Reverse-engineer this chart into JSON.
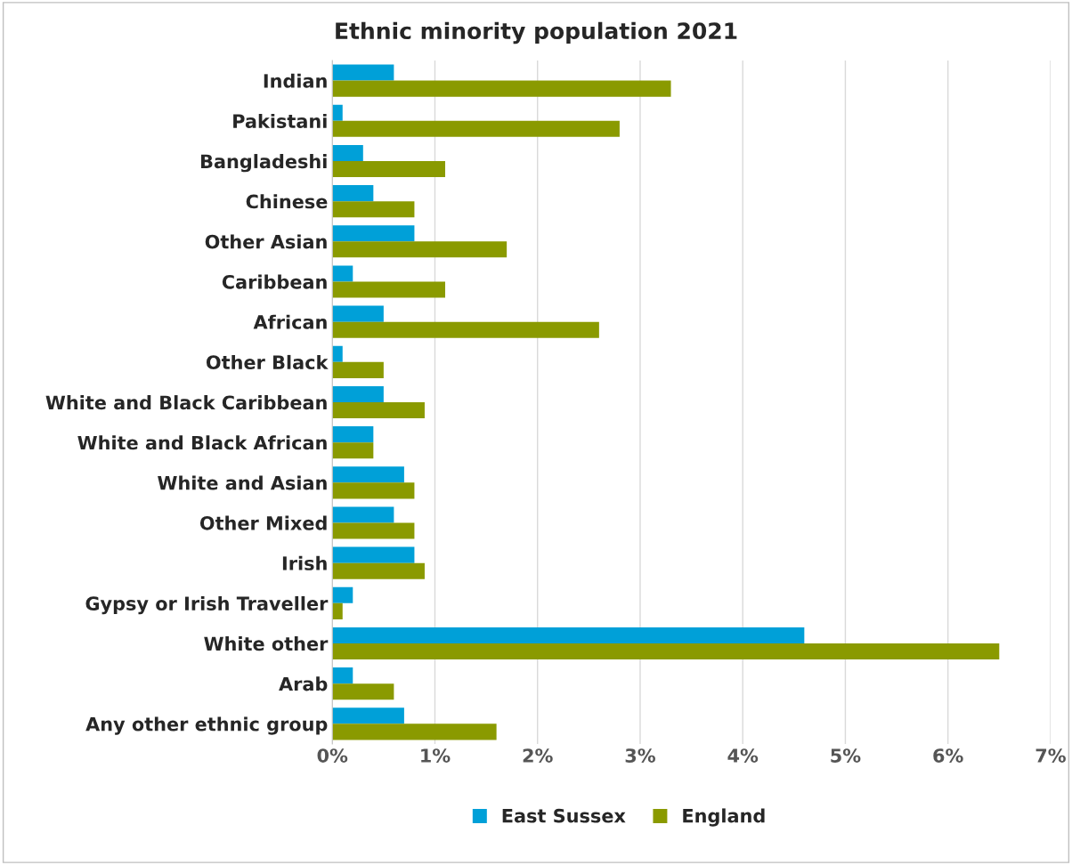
{
  "chart_data": {
    "type": "bar",
    "orientation": "horizontal",
    "title": "Ethnic minority population 2021",
    "categories": [
      "Indian",
      "Pakistani",
      "Bangladeshi",
      "Chinese",
      "Other Asian",
      "Caribbean",
      "African",
      "Other Black",
      "White and Black Caribbean",
      "White and Black African",
      "White and Asian",
      "Other Mixed",
      "Irish",
      "Gypsy or Irish Traveller",
      "White other",
      "Arab",
      "Any other ethnic group"
    ],
    "series": [
      {
        "name": "East Sussex",
        "color": "#00a0d8",
        "values": [
          0.6,
          0.1,
          0.3,
          0.4,
          0.8,
          0.2,
          0.5,
          0.1,
          0.5,
          0.4,
          0.7,
          0.6,
          0.8,
          0.2,
          4.6,
          0.2,
          0.7
        ]
      },
      {
        "name": "England",
        "color": "#8a9a00",
        "values": [
          3.3,
          2.8,
          1.1,
          0.8,
          1.7,
          1.1,
          2.6,
          0.5,
          0.9,
          0.4,
          0.8,
          0.8,
          0.9,
          0.1,
          6.5,
          0.6,
          1.6
        ]
      }
    ],
    "xlim": [
      0,
      7
    ],
    "xticks": [
      {
        "value": 0,
        "label": "0%"
      },
      {
        "value": 1,
        "label": "1%"
      },
      {
        "value": 2,
        "label": "2%"
      },
      {
        "value": 3,
        "label": "3%"
      },
      {
        "value": 4,
        "label": "4%"
      },
      {
        "value": 5,
        "label": "5%"
      },
      {
        "value": 6,
        "label": "6%"
      },
      {
        "value": 7,
        "label": "7%"
      }
    ],
    "grid": "x",
    "legend": "bottom"
  }
}
